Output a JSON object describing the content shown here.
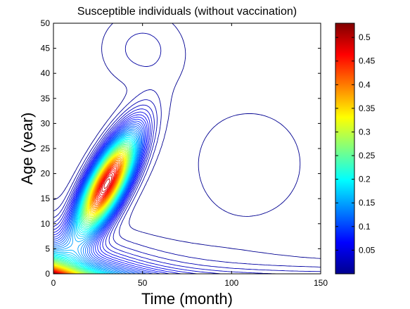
{
  "chart_data": {
    "type": "contour",
    "title": "Susceptible individuals (without vaccination)",
    "xlabel": "Time (month)",
    "ylabel": "Age (year)",
    "xlim": [
      0,
      150
    ],
    "ylim": [
      0,
      50
    ],
    "xticks": [
      0,
      50,
      100,
      150
    ],
    "yticks": [
      0,
      5,
      10,
      15,
      20,
      25,
      30,
      35,
      40,
      45,
      50
    ],
    "colorbar": {
      "range": [
        0,
        0.53
      ],
      "ticks": [
        0.05,
        0.1,
        0.15,
        0.2,
        0.25,
        0.3,
        0.35,
        0.4,
        0.45,
        0.5
      ],
      "colormap": "jet"
    },
    "features": [
      {
        "description": "peak",
        "time": 30,
        "age": 18,
        "value": 0.5
      },
      {
        "description": "high at origin",
        "time": 0,
        "age": 0,
        "value": 0.53
      }
    ]
  }
}
